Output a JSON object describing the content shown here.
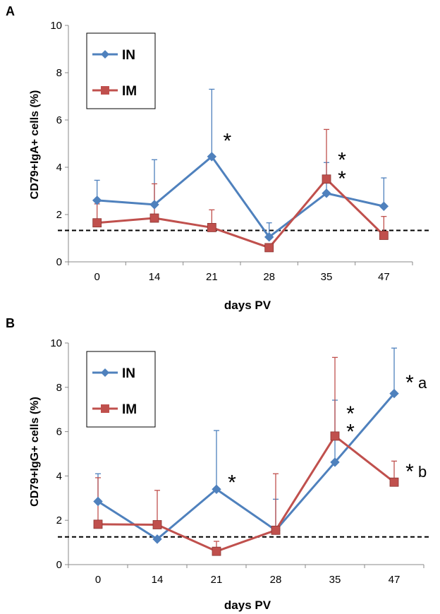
{
  "chart_data": [
    {
      "panel": "A",
      "type": "line",
      "title": "",
      "xlabel": "days PV",
      "ylabel": "CD79+IgA+ cells (%)",
      "categories": [
        "0",
        "14",
        "21",
        "28",
        "35",
        "47"
      ],
      "ylim": [
        0,
        10
      ],
      "yticks": [
        "0",
        "2",
        "4",
        "6",
        "8",
        "10"
      ],
      "threshold": 1.33,
      "series": [
        {
          "name": "IN",
          "color": "#4f81bd",
          "marker": "diamond",
          "values": [
            2.6,
            2.42,
            4.45,
            1.05,
            2.9,
            2.35
          ],
          "errors": [
            0.85,
            1.9,
            2.85,
            0.6,
            1.3,
            1.2
          ]
        },
        {
          "name": "IM",
          "color": "#c0504d",
          "marker": "square",
          "values": [
            1.65,
            1.85,
            1.45,
            0.6,
            3.5,
            1.12
          ],
          "errors": [
            0.8,
            1.45,
            0.75,
            0.15,
            2.1,
            0.8
          ]
        }
      ],
      "annotations": [
        {
          "category": "21",
          "text": "*",
          "y": 5.3
        },
        {
          "category": "35",
          "text": "*",
          "y": 4.5
        },
        {
          "category": "35",
          "text": "*",
          "y": 3.7
        }
      ]
    },
    {
      "panel": "B",
      "type": "line",
      "title": "",
      "xlabel": "days PV",
      "ylabel": "CD79+IgG+ cells (%)",
      "categories": [
        "0",
        "14",
        "21",
        "28",
        "35",
        "47"
      ],
      "ylim": [
        0,
        10
      ],
      "yticks": [
        "0",
        "2",
        "4",
        "6",
        "8",
        "10"
      ],
      "threshold": 1.25,
      "series": [
        {
          "name": "IN",
          "color": "#4f81bd",
          "marker": "diamond",
          "values": [
            2.85,
            1.15,
            3.4,
            1.55,
            4.62,
            7.72
          ],
          "errors": [
            1.25,
            0.0,
            2.65,
            1.4,
            2.8,
            2.05
          ]
        },
        {
          "name": "IM",
          "color": "#c0504d",
          "marker": "square",
          "values": [
            1.82,
            1.8,
            0.6,
            1.55,
            5.8,
            3.72
          ],
          "errors": [
            2.1,
            1.55,
            0.45,
            2.55,
            3.55,
            0.95
          ]
        }
      ],
      "annotations": [
        {
          "category": "21",
          "text": "*",
          "y": 3.9
        },
        {
          "category": "35",
          "text": "*",
          "y": 7.0
        },
        {
          "category": "35",
          "text": "*",
          "y": 6.2
        },
        {
          "category": "47",
          "text": "*",
          "y": 8.4,
          "letter": "a"
        },
        {
          "category": "47",
          "text": "*",
          "y": 4.4,
          "letter": "b"
        }
      ]
    }
  ]
}
